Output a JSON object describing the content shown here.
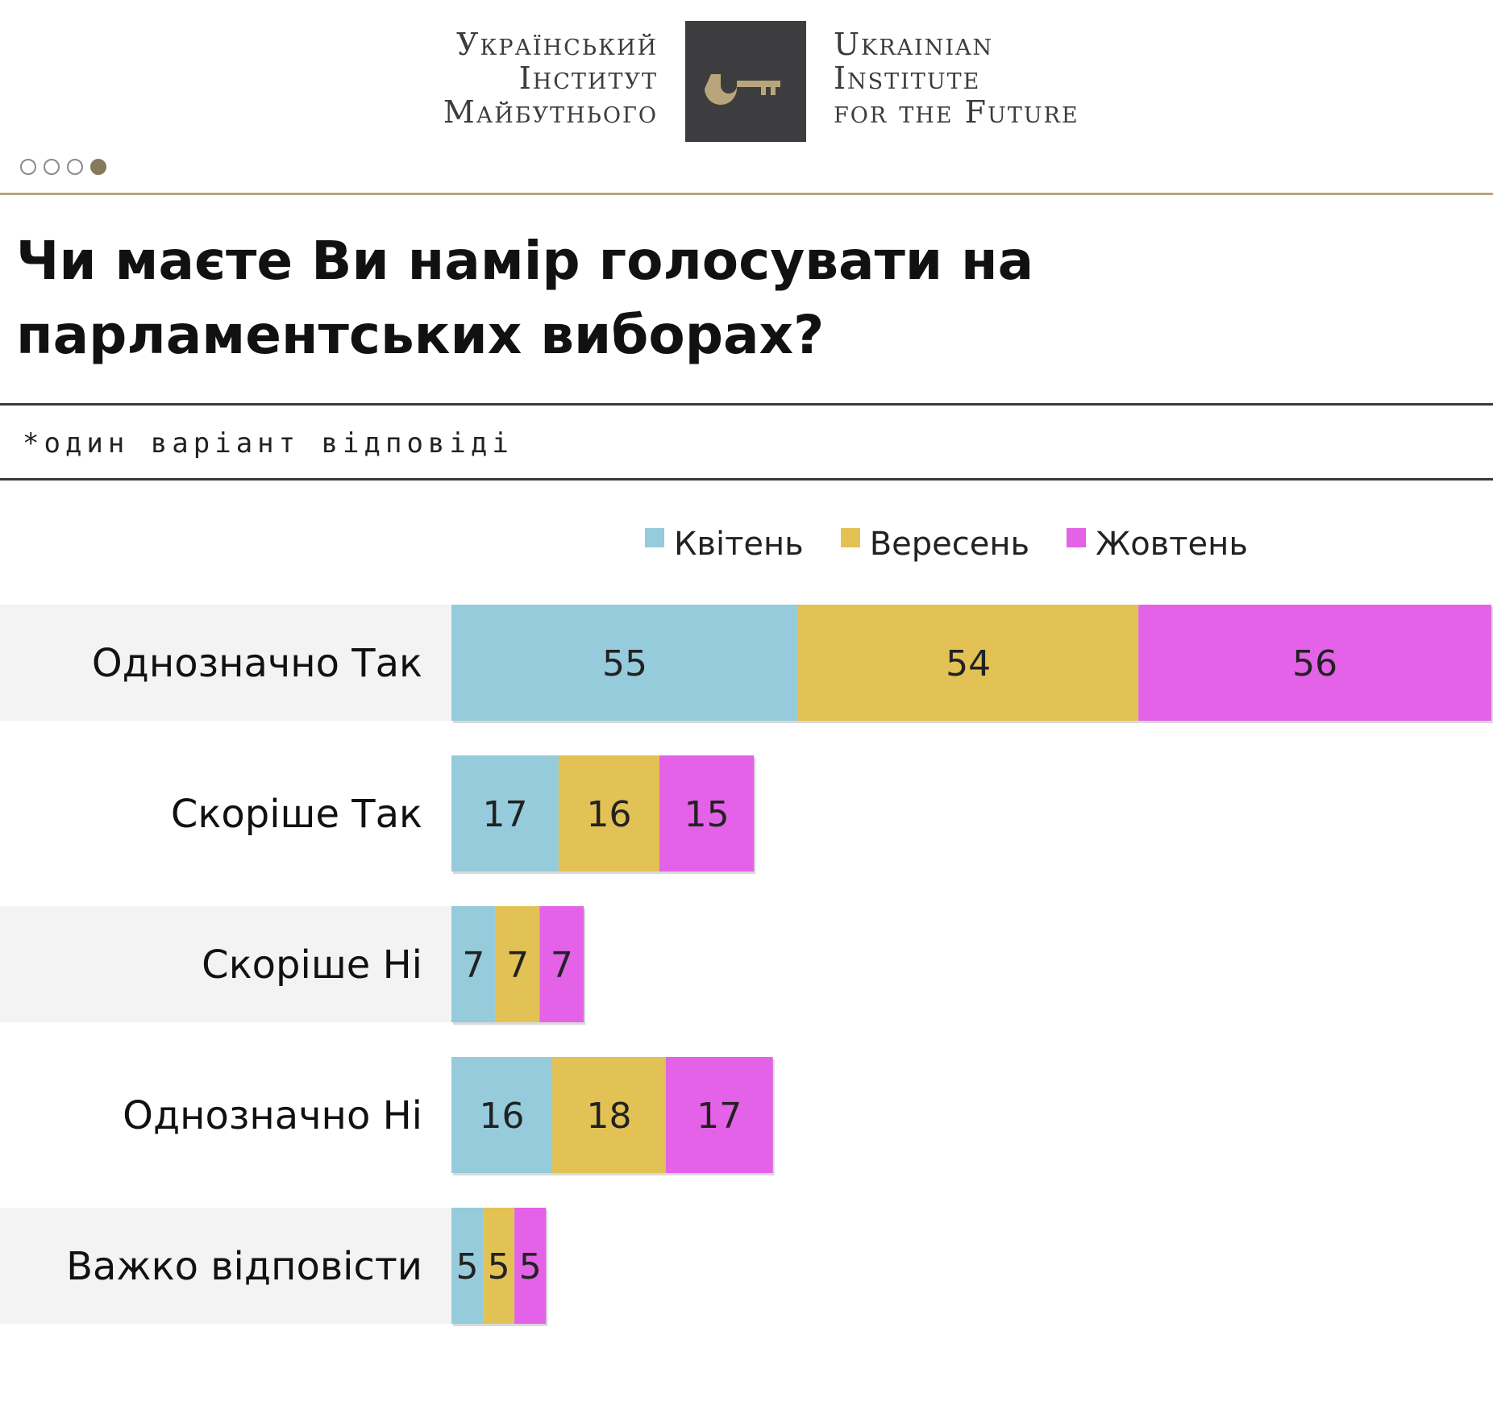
{
  "header": {
    "logo_ua": [
      "Український",
      "Інститут",
      "Майбутнього"
    ],
    "logo_en": [
      "Ukrainian",
      "Institute",
      "for the Future"
    ],
    "logo_icon": "key-icon",
    "pager": {
      "total": 4,
      "active": 4
    }
  },
  "title": "Чи маєте Ви намір голосувати на парламентських виборах?",
  "note": "*один варіант відповіді",
  "chart_data": {
    "type": "bar",
    "orientation": "horizontal-stacked",
    "categories": [
      "Однозначно Так",
      "Скоріше Так",
      "Скоріше Ні",
      "Однозначно Ні",
      "Важко відповісти"
    ],
    "series": [
      {
        "name": "Квітень",
        "color": "#96cbdc",
        "values": [
          55,
          17,
          7,
          16,
          5
        ]
      },
      {
        "name": "Вересень",
        "color": "#e2c254",
        "values": [
          54,
          16,
          7,
          18,
          5
        ]
      },
      {
        "name": "Жовтень",
        "color": "#e362e8",
        "values": [
          56,
          15,
          7,
          17,
          5
        ]
      }
    ],
    "legend": "top",
    "grid": false,
    "row_band_color": "#f3f3f3"
  }
}
